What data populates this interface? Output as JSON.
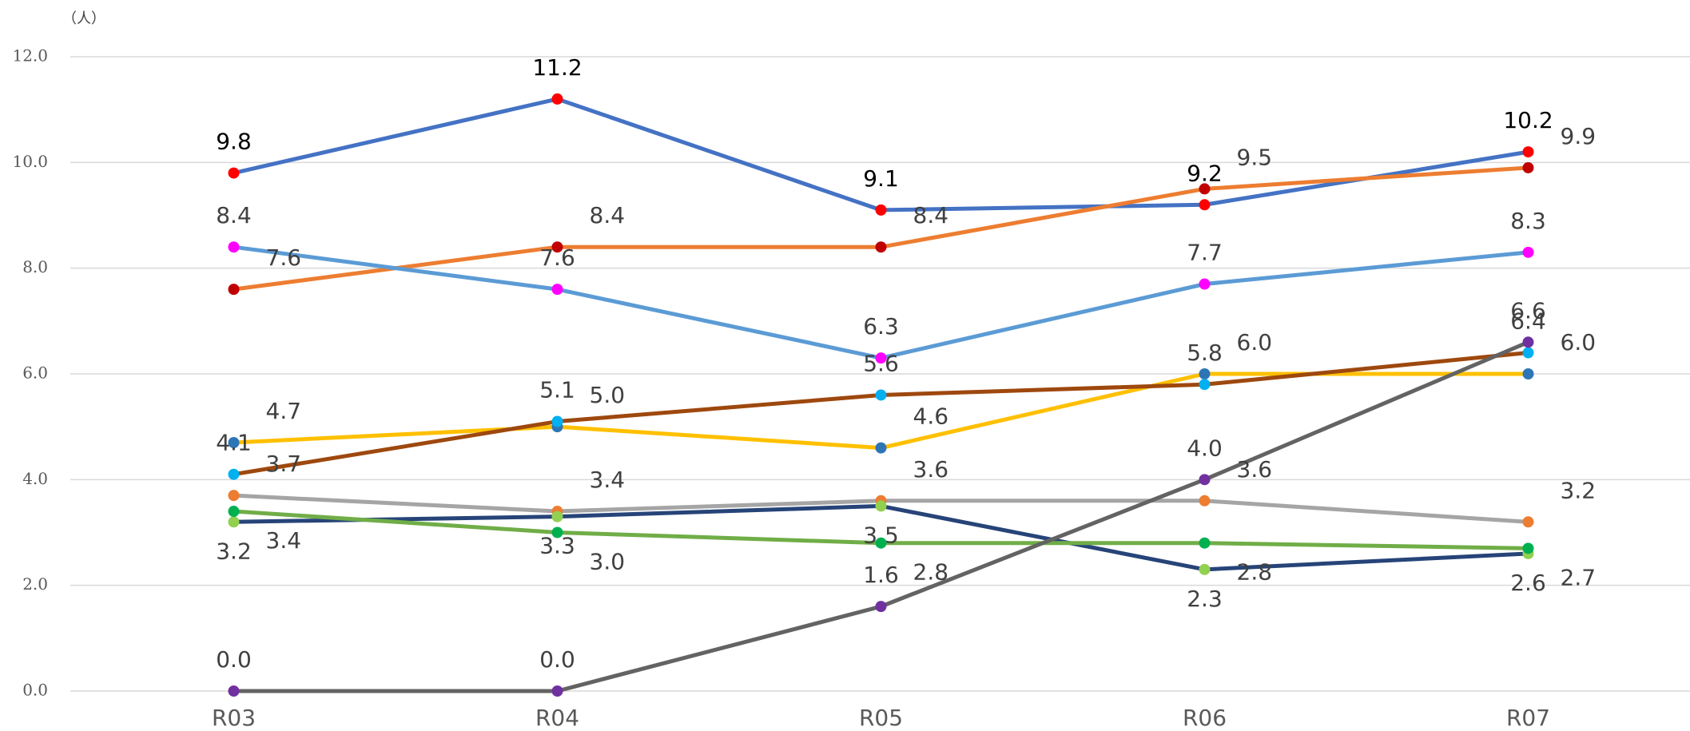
{
  "chart_data": {
    "type": "line",
    "y_label": "（人）",
    "categories": [
      "R03",
      "R04",
      "R05",
      "R06",
      "R07"
    ],
    "ylim": [
      0,
      12
    ],
    "yticks": [
      {
        "value": 0,
        "label": "0.0"
      },
      {
        "value": 2,
        "label": "2.0"
      },
      {
        "value": 4,
        "label": "4.0"
      },
      {
        "value": 6,
        "label": "6.0"
      },
      {
        "value": 8,
        "label": "8.0"
      },
      {
        "value": 10,
        "label": "10.0"
      },
      {
        "value": 12,
        "label": "12.0"
      }
    ],
    "grid": true,
    "series": [
      {
        "color": "#4472c4",
        "marker_color": "#ff0000",
        "values": [
          9.8,
          11.2,
          9.1,
          9.2,
          10.2
        ],
        "value_labels": [
          "9.8",
          "11.2",
          "9.1",
          "9.2",
          "10.2"
        ]
      },
      {
        "color": "#ed7d31",
        "marker_color": "#c00000",
        "values": [
          7.6,
          8.4,
          8.4,
          9.5,
          9.9
        ],
        "value_labels": [
          "7.6",
          "8.4",
          "8.4",
          "9.5",
          "9.9"
        ]
      },
      {
        "color": "#5b9bd5",
        "marker_color": "#ff00ff",
        "values": [
          8.4,
          7.6,
          6.3,
          7.7,
          8.3
        ],
        "value_labels": [
          "8.4",
          "7.6",
          "6.3",
          "7.7",
          "8.3"
        ]
      },
      {
        "color": "#ffc000",
        "marker_color": "#2e75b6",
        "values": [
          4.7,
          5.0,
          4.6,
          6.0,
          6.0
        ],
        "value_labels": [
          "4.7",
          "5.0",
          "4.6",
          "6.0",
          "6.0"
        ]
      },
      {
        "color": "#9e480e",
        "marker_color": "#00b0f0",
        "values": [
          4.1,
          5.1,
          5.6,
          5.8,
          6.4
        ],
        "value_labels": [
          "4.1",
          "5.1",
          "5.6",
          "5.8",
          "6.4"
        ]
      },
      {
        "color": "#a5a5a5",
        "marker_color": "#ed7d31",
        "values": [
          3.7,
          3.4,
          3.6,
          3.6,
          3.2
        ],
        "value_labels": [
          "3.7",
          "3.4",
          "3.6",
          "3.6",
          "3.2"
        ]
      },
      {
        "color": "#264478",
        "marker_color": "#92d050",
        "values": [
          3.2,
          3.3,
          3.5,
          2.3,
          2.6
        ],
        "value_labels": [
          "3.2",
          "3.3",
          "3.5",
          "2.3",
          "2.6"
        ]
      },
      {
        "color": "#70ad47",
        "marker_color": "#00b050",
        "values": [
          3.4,
          3.0,
          2.8,
          2.8,
          2.7
        ],
        "value_labels": [
          "3.4",
          "3.0",
          "2.8",
          "2.8",
          "2.7"
        ]
      },
      {
        "color": "#636363",
        "marker_color": "#7030a0",
        "values": [
          0.0,
          0.0,
          1.6,
          4.0,
          6.6
        ],
        "value_labels": [
          "0.0",
          "0.0",
          "1.6",
          "4.0",
          "6.6"
        ]
      }
    ]
  }
}
